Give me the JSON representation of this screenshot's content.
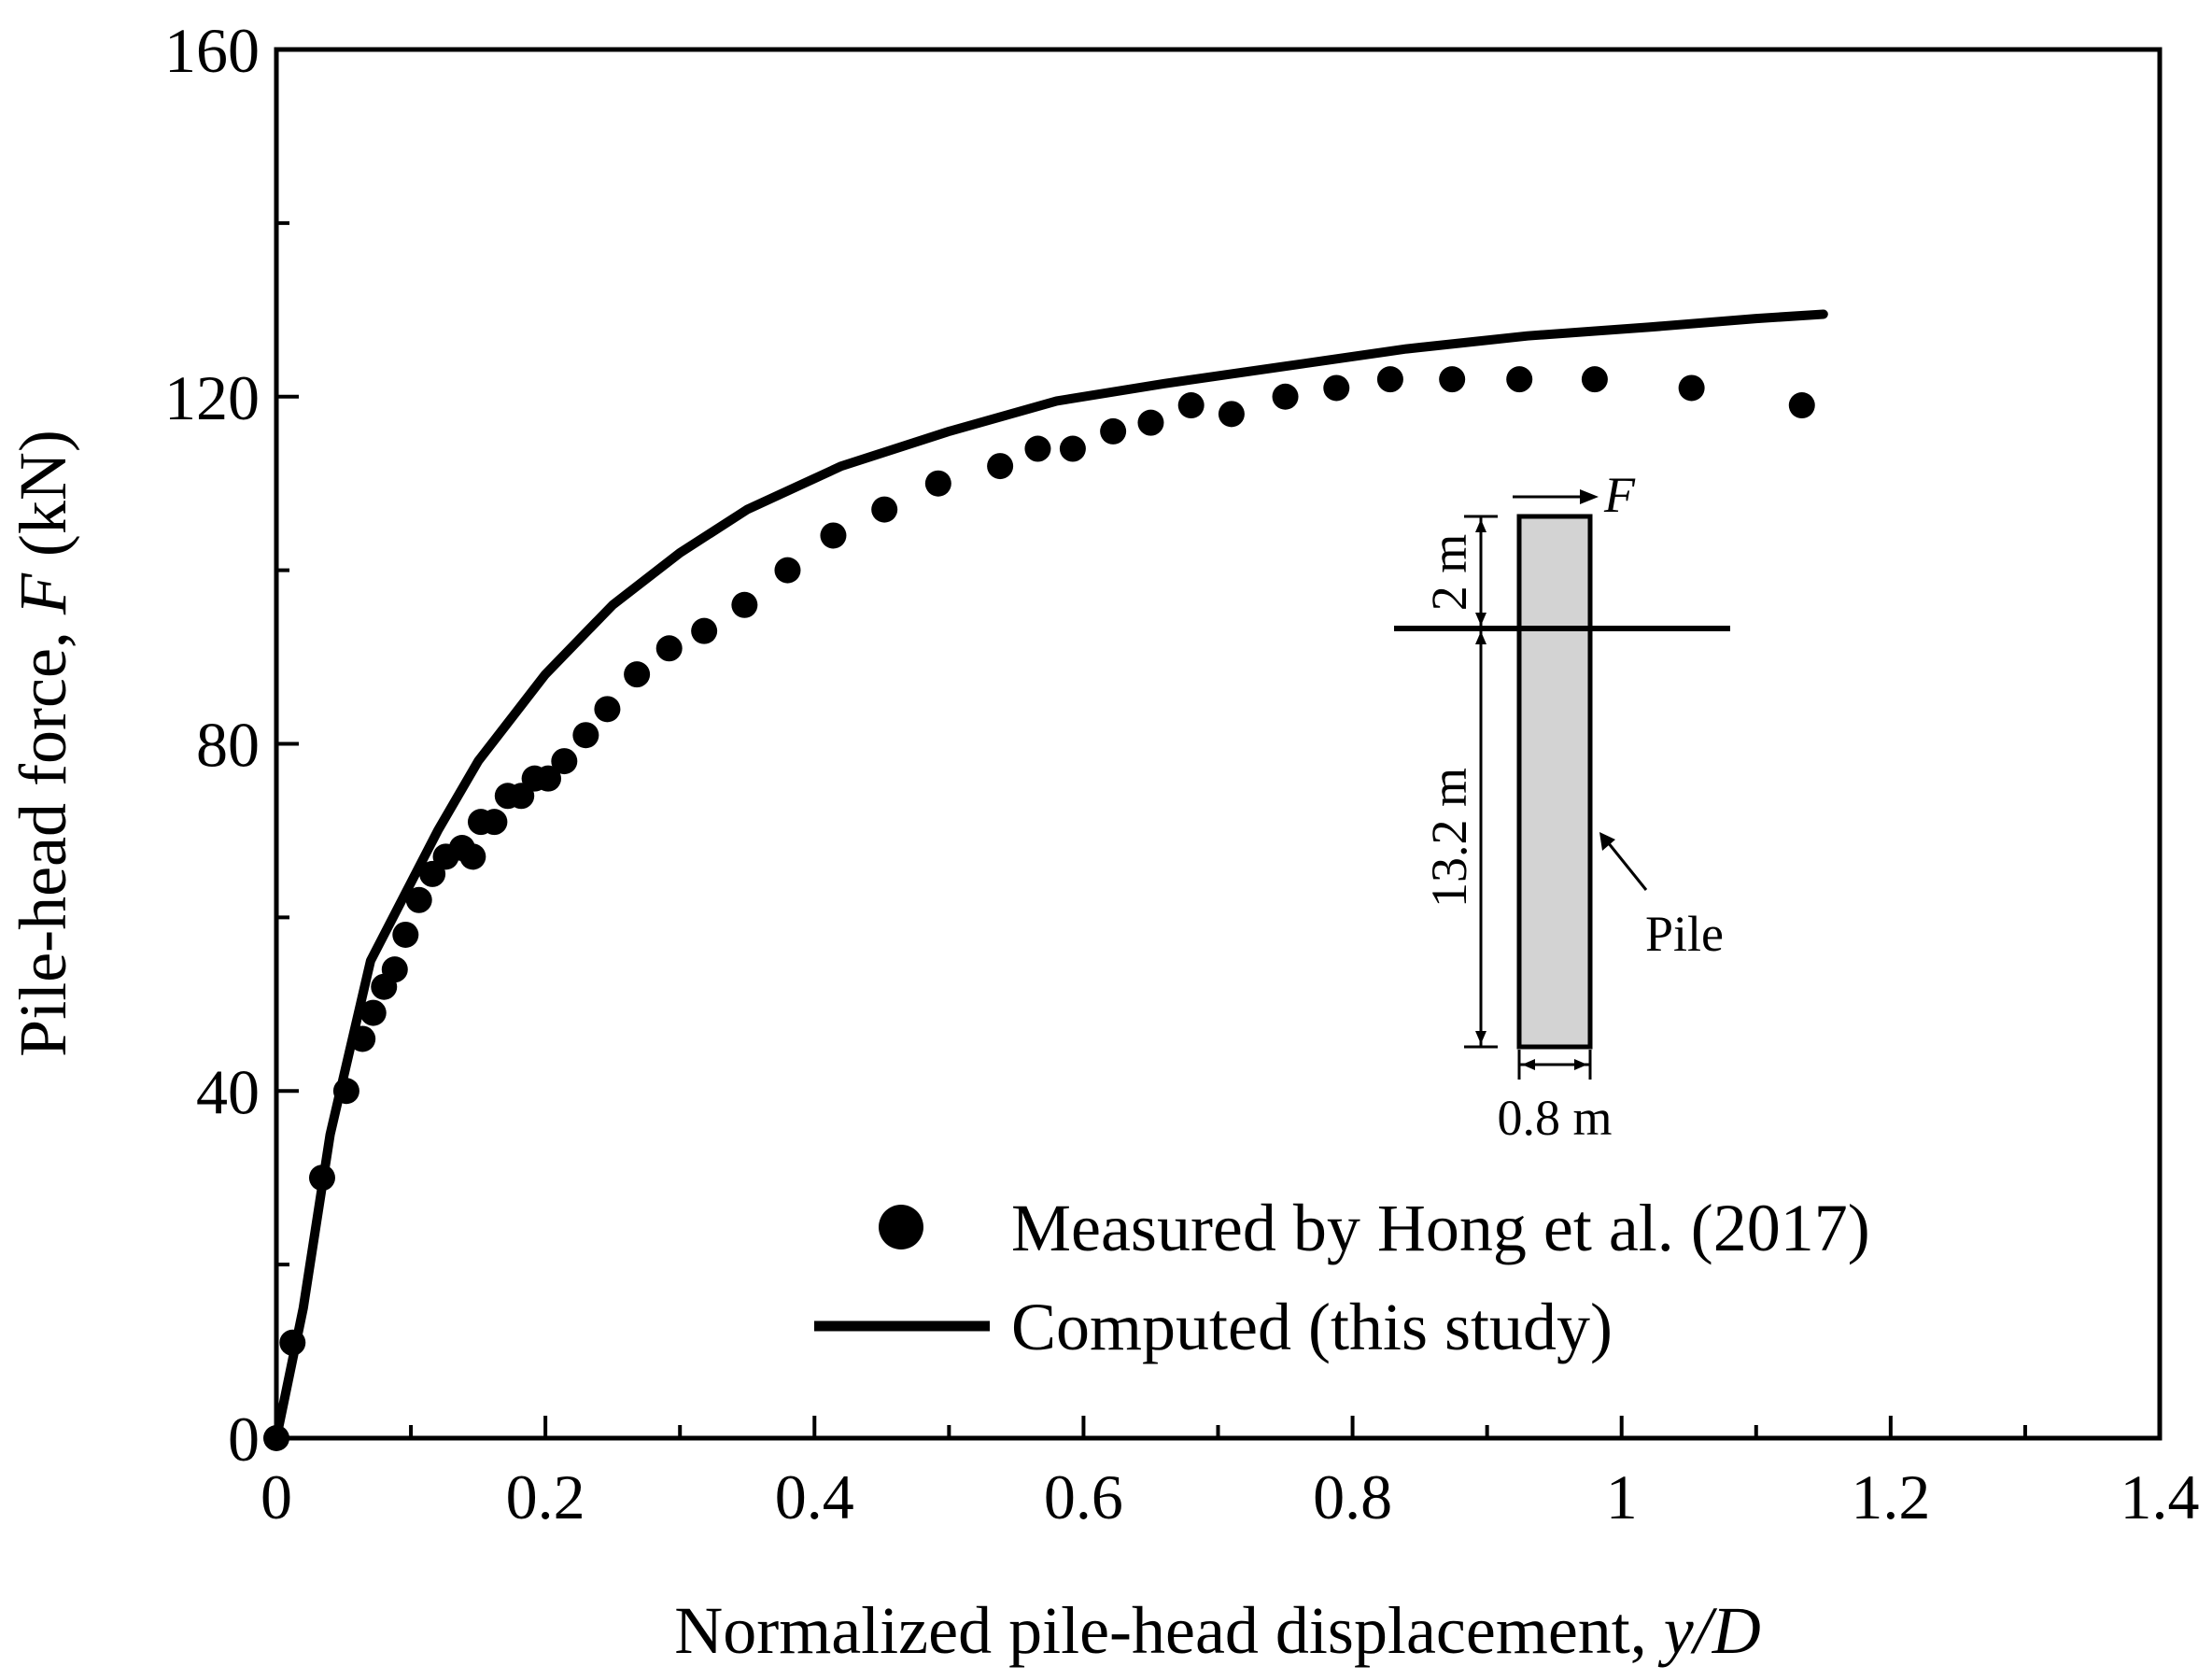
{
  "chart_data": {
    "type": "scatter",
    "xlabel_main": "Normalized pile-head displacement, ",
    "xlabel_italic": "y/D",
    "ylabel_main": "Pile-head force, ",
    "ylabel_italic": "F",
    "ylabel_unit": " (kN)",
    "xlim": [
      0,
      1.4
    ],
    "ylim": [
      0,
      160
    ],
    "x_ticks": [
      0,
      0.2,
      0.4,
      0.6,
      0.8,
      1,
      1.2,
      1.4
    ],
    "x_tick_labels": [
      "0",
      "0.2",
      "0.4",
      "0.6",
      "0.8",
      "1",
      "1.2",
      "1.4"
    ],
    "y_ticks": [
      0,
      40,
      80,
      120,
      160
    ],
    "y_tick_labels": [
      "0",
      "40",
      "80",
      "120",
      "160"
    ],
    "series": [
      {
        "name": "Measured by Hong et al. (2017)",
        "kind": "scatter",
        "color": "#000000",
        "x": [
          0,
          0.012,
          0.034,
          0.052,
          0.064,
          0.072,
          0.08,
          0.088,
          0.096,
          0.106,
          0.116,
          0.126,
          0.138,
          0.146,
          0.152,
          0.162,
          0.172,
          0.182,
          0.192,
          0.202,
          0.214,
          0.23,
          0.246,
          0.268,
          0.292,
          0.318,
          0.348,
          0.38,
          0.414,
          0.452,
          0.492,
          0.538,
          0.566,
          0.592,
          0.622,
          0.65,
          0.68,
          0.71,
          0.75,
          0.788,
          0.828,
          0.874,
          0.924,
          0.98,
          1.052,
          1.134
        ],
        "y": [
          0,
          11,
          30,
          40,
          46,
          49,
          52,
          54,
          58,
          62,
          65,
          67,
          68,
          67,
          71,
          71,
          74,
          74,
          76,
          76,
          78,
          81,
          84,
          88,
          91,
          93,
          96,
          100,
          104,
          107,
          110,
          112,
          114,
          114,
          116,
          117,
          119,
          118,
          120,
          121,
          122,
          122,
          122,
          122,
          121,
          119
        ]
      },
      {
        "name": "Computed (this study)",
        "kind": "line",
        "color": "#000000",
        "x": [
          0,
          0.02,
          0.04,
          0.07,
          0.1,
          0.12,
          0.15,
          0.2,
          0.25,
          0.3,
          0.35,
          0.42,
          0.5,
          0.58,
          0.66,
          0.75,
          0.84,
          0.93,
          1.02,
          1.1,
          1.15
        ],
        "y": [
          0,
          15,
          35,
          55,
          64,
          70,
          78,
          88,
          96,
          102,
          107,
          112,
          116,
          119.5,
          121.5,
          123.5,
          125.5,
          127,
          128,
          129,
          129.5
        ]
      }
    ],
    "legend_position": "lower-right",
    "inset": {
      "force_label": "F",
      "above_ground_length": "2 m",
      "embedded_length": "13.2 m",
      "diameter": "0.8 m",
      "pile_label": "Pile",
      "pile_fill": "#d3d3d3"
    }
  }
}
